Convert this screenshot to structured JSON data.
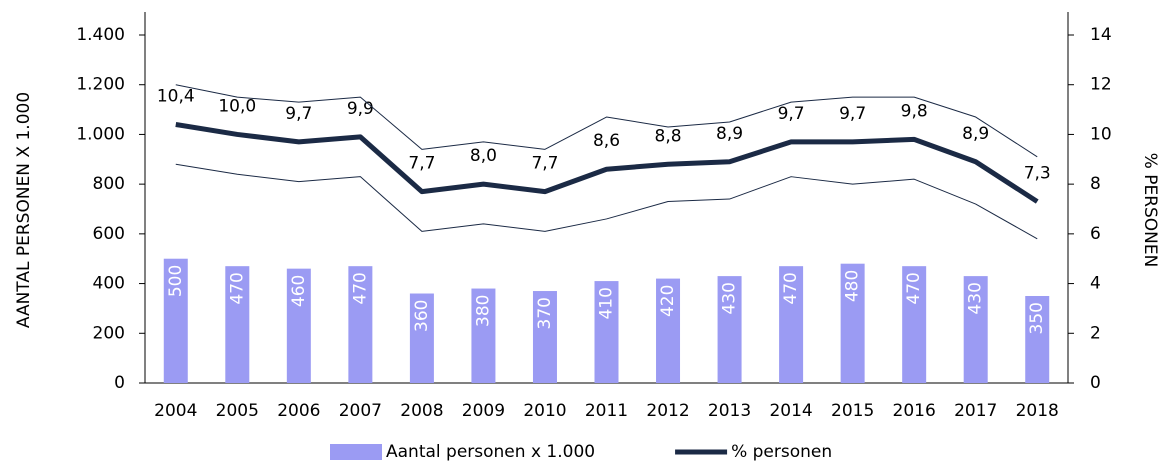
{
  "chart_data": {
    "type": "bar-line",
    "categories": [
      "2004",
      "2005",
      "2006",
      "2007",
      "2008",
      "2009",
      "2010",
      "2011",
      "2012",
      "2013",
      "2014",
      "2015",
      "2016",
      "2017",
      "2018"
    ],
    "series": [
      {
        "name": "Aantal personen x 1.000",
        "type": "bar",
        "color": "#9b9bf3",
        "values": [
          500,
          470,
          460,
          470,
          360,
          380,
          370,
          410,
          420,
          430,
          470,
          480,
          470,
          430,
          350
        ]
      },
      {
        "name": "% personen",
        "type": "line",
        "axis": "y2",
        "color": "#1b2a45",
        "values": [
          10.4,
          10.0,
          9.7,
          9.9,
          7.7,
          8.0,
          7.7,
          8.6,
          8.8,
          8.9,
          9.7,
          9.7,
          9.8,
          8.9,
          7.3
        ],
        "value_labels": [
          "10,4",
          "10,0",
          "9,7",
          "9,9",
          "7,7",
          "8,0",
          "7,7",
          "8,6",
          "8,8",
          "8,9",
          "9,7",
          "9,7",
          "9,8",
          "8,9",
          "7,3"
        ]
      },
      {
        "type": "line",
        "axis": "y2",
        "color": "#1b2a45",
        "values": [
          12.0,
          11.5,
          11.3,
          11.5,
          9.4,
          9.7,
          9.4,
          10.7,
          10.3,
          10.5,
          11.3,
          11.5,
          11.5,
          10.7,
          9.1
        ]
      },
      {
        "type": "line",
        "axis": "y2",
        "color": "#1b2a45",
        "values": [
          8.8,
          8.4,
          8.1,
          8.3,
          6.1,
          6.4,
          6.1,
          6.6,
          7.3,
          7.4,
          8.3,
          8.0,
          8.2,
          7.2,
          5.8
        ]
      }
    ],
    "ylabel": "AANTAL PERSONEN X 1.000",
    "y2label": "% PERSONEN",
    "ylim": [
      0,
      1400
    ],
    "yticks": [
      0,
      200,
      400,
      600,
      800,
      {
        "value": 1000,
        "label": "1.000"
      },
      {
        "value": 1200,
        "label": "1.200"
      },
      {
        "value": 1400,
        "label": "1.400"
      }
    ],
    "y2lim": [
      0,
      14
    ],
    "y2ticks": [
      0,
      2,
      4,
      6,
      8,
      10,
      12,
      14
    ],
    "legend": "bottom"
  }
}
